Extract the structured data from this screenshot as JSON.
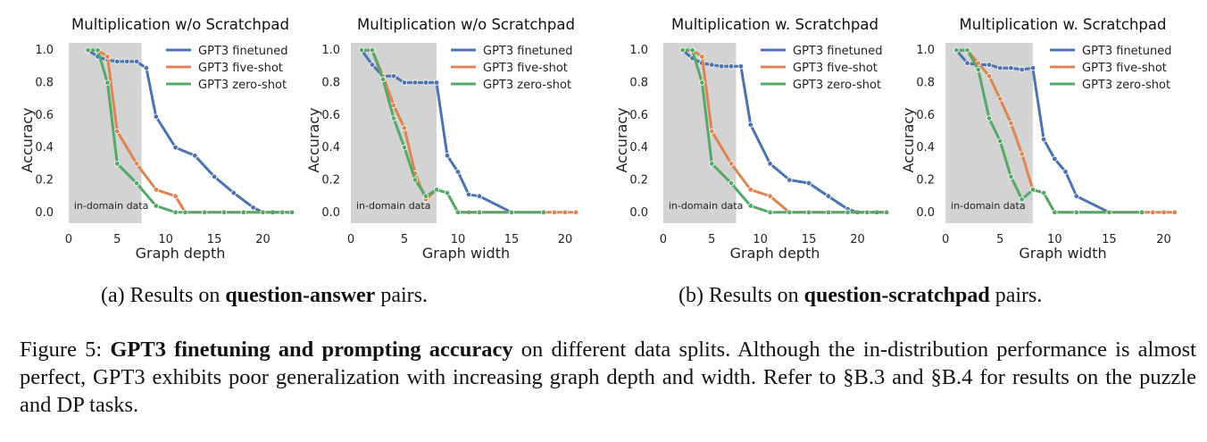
{
  "chart_data": [
    {
      "type": "line",
      "title": "Multiplication w/o Scratchpad",
      "xlabel": "Graph depth",
      "ylabel": "Accuracy",
      "xlim": [
        -1,
        24
      ],
      "ylim": [
        -0.1,
        1.1
      ],
      "xticks": [
        0,
        5,
        10,
        15,
        20
      ],
      "yticks": [
        0.0,
        0.2,
        0.4,
        0.6,
        0.8,
        1.0
      ],
      "shaded_region": {
        "x": [
          0,
          7.5
        ],
        "label": "in-domain data"
      },
      "legend_position": "top-right",
      "series": [
        {
          "name": "GPT3 finetuned",
          "color": "#4c72b0",
          "x": [
            2,
            3,
            4,
            5,
            6,
            7,
            8,
            9,
            11,
            13,
            15,
            17,
            19,
            20,
            21,
            22,
            23
          ],
          "y": [
            1.0,
            0.96,
            0.94,
            0.93,
            0.93,
            0.93,
            0.89,
            0.59,
            0.4,
            0.35,
            0.22,
            0.12,
            0.03,
            0.0,
            0.0,
            0.0,
            0.0
          ]
        },
        {
          "name": "GPT3 five-shot",
          "color": "#dd8452",
          "x": [
            2,
            3,
            4,
            5,
            7,
            9,
            11,
            12,
            14,
            16,
            18,
            20,
            22,
            23
          ],
          "y": [
            1.0,
            1.0,
            0.96,
            0.5,
            0.3,
            0.14,
            0.1,
            0.0,
            0.0,
            0.0,
            0.0,
            0.0,
            0.0,
            0.0
          ]
        },
        {
          "name": "GPT3 zero-shot",
          "color": "#55a868",
          "x": [
            2,
            3,
            4,
            5,
            7,
            9,
            11,
            12,
            14,
            16,
            18,
            20,
            22,
            23
          ],
          "y": [
            1.0,
            1.0,
            0.8,
            0.3,
            0.18,
            0.04,
            0.0,
            0.0,
            0.0,
            0.0,
            0.0,
            0.0,
            0.0,
            0.0
          ]
        }
      ]
    },
    {
      "type": "line",
      "title": "Multiplication w/o Scratchpad",
      "xlabel": "Graph width",
      "ylabel": "Accuracy",
      "xlim": [
        -0.5,
        22
      ],
      "ylim": [
        -0.1,
        1.1
      ],
      "xticks": [
        0,
        5,
        10,
        15,
        20
      ],
      "yticks": [
        0.0,
        0.2,
        0.4,
        0.6,
        0.8,
        1.0
      ],
      "shaded_region": {
        "x": [
          0,
          8
        ],
        "label": "in-domain data"
      },
      "legend_position": "top-right",
      "series": [
        {
          "name": "GPT3 finetuned",
          "color": "#4c72b0",
          "x": [
            1,
            2,
            3,
            4,
            5,
            6,
            7,
            8,
            9,
            10,
            11,
            12,
            15
          ],
          "y": [
            1.0,
            0.91,
            0.84,
            0.84,
            0.8,
            0.8,
            0.8,
            0.8,
            0.35,
            0.25,
            0.11,
            0.1,
            0.0
          ]
        },
        {
          "name": "GPT3 five-shot",
          "color": "#dd8452",
          "x": [
            1,
            2,
            3,
            4,
            5,
            6,
            7,
            8,
            9,
            10,
            11,
            12,
            15,
            18,
            19,
            20,
            21
          ],
          "y": [
            1.0,
            1.0,
            0.84,
            0.66,
            0.52,
            0.24,
            0.08,
            0.14,
            0.12,
            0.0,
            0.0,
            0.0,
            0.0,
            0.0,
            0.0,
            0.0,
            0.0
          ]
        },
        {
          "name": "GPT3 zero-shot",
          "color": "#55a868",
          "x": [
            1,
            2,
            3,
            4,
            5,
            6,
            7,
            8,
            9,
            10,
            12,
            15,
            18
          ],
          "y": [
            1.0,
            1.0,
            0.82,
            0.58,
            0.4,
            0.2,
            0.1,
            0.14,
            0.12,
            0.0,
            0.0,
            0.0,
            0.0
          ]
        }
      ]
    },
    {
      "type": "line",
      "title": "Multiplication w. Scratchpad",
      "xlabel": "Graph depth",
      "ylabel": "Accuracy",
      "xlim": [
        -1,
        24
      ],
      "ylim": [
        -0.1,
        1.1
      ],
      "xticks": [
        0,
        5,
        10,
        15,
        20
      ],
      "yticks": [
        0.0,
        0.2,
        0.4,
        0.6,
        0.8,
        1.0
      ],
      "shaded_region": {
        "x": [
          0,
          7.5
        ],
        "label": "in-domain data"
      },
      "legend_position": "top-right",
      "series": [
        {
          "name": "GPT3 finetuned",
          "color": "#4c72b0",
          "x": [
            2,
            3,
            4,
            5,
            6,
            7,
            8,
            9,
            11,
            13,
            15,
            17,
            19,
            20,
            21,
            22,
            23
          ],
          "y": [
            1.0,
            0.95,
            0.92,
            0.91,
            0.9,
            0.9,
            0.9,
            0.54,
            0.3,
            0.2,
            0.18,
            0.1,
            0.02,
            0.0,
            0.0,
            0.0,
            0.0
          ]
        },
        {
          "name": "GPT3 five-shot",
          "color": "#dd8452",
          "x": [
            2,
            3,
            4,
            5,
            7,
            9,
            11,
            13,
            15,
            17,
            19,
            21,
            23
          ],
          "y": [
            1.0,
            1.0,
            0.96,
            0.5,
            0.3,
            0.14,
            0.1,
            0.0,
            0.0,
            0.0,
            0.0,
            0.0,
            0.0
          ]
        },
        {
          "name": "GPT3 zero-shot",
          "color": "#55a868",
          "x": [
            2,
            3,
            4,
            5,
            7,
            9,
            11,
            13,
            15,
            17,
            19,
            21,
            23
          ],
          "y": [
            1.0,
            1.0,
            0.8,
            0.3,
            0.18,
            0.04,
            0.0,
            0.0,
            0.0,
            0.0,
            0.0,
            0.0,
            0.0
          ]
        }
      ]
    },
    {
      "type": "line",
      "title": "Multiplication w. Scratchpad",
      "xlabel": "Graph width",
      "ylabel": "Accuracy",
      "xlim": [
        -0.5,
        22
      ],
      "ylim": [
        -0.1,
        1.1
      ],
      "xticks": [
        0,
        5,
        10,
        15,
        20
      ],
      "yticks": [
        0.0,
        0.2,
        0.4,
        0.6,
        0.8,
        1.0
      ],
      "shaded_region": {
        "x": [
          0,
          8
        ],
        "label": "in-domain data"
      },
      "legend_position": "top-right",
      "series": [
        {
          "name": "GPT3 finetuned",
          "color": "#4c72b0",
          "x": [
            1,
            2,
            3,
            4,
            5,
            6,
            7,
            8,
            9,
            10,
            11,
            12,
            15
          ],
          "y": [
            1.0,
            0.92,
            0.91,
            0.91,
            0.89,
            0.89,
            0.88,
            0.89,
            0.45,
            0.33,
            0.25,
            0.1,
            0.0
          ]
        },
        {
          "name": "GPT3 five-shot",
          "color": "#dd8452",
          "x": [
            1,
            2,
            3,
            4,
            5,
            6,
            7,
            8,
            9,
            10,
            12,
            15,
            18,
            19,
            20,
            21
          ],
          "y": [
            1.0,
            1.0,
            0.92,
            0.84,
            0.7,
            0.55,
            0.36,
            0.14,
            0.12,
            0.0,
            0.0,
            0.0,
            0.0,
            0.0,
            0.0,
            0.0
          ]
        },
        {
          "name": "GPT3 zero-shot",
          "color": "#55a868",
          "x": [
            1,
            2,
            3,
            4,
            5,
            6,
            7,
            8,
            9,
            10,
            12,
            15,
            18
          ],
          "y": [
            1.0,
            1.0,
            0.88,
            0.58,
            0.44,
            0.22,
            0.08,
            0.14,
            0.12,
            0.0,
            0.0,
            0.0,
            0.0
          ]
        }
      ]
    }
  ],
  "subcaptions": {
    "a": {
      "prefix": "(a) Results on ",
      "bold": "question-answer",
      "suffix": " pairs."
    },
    "b": {
      "prefix": "(b) Results on ",
      "bold": "question-scratchpad",
      "suffix": " pairs."
    }
  },
  "caption": {
    "label": "Figure 5:",
    "bold": "GPT3 finetuning and prompting accuracy",
    "text": " on different data splits. Although the in-distribution performance is almost perfect, GPT3 exhibits poor generalization with increasing graph depth and width. Refer to §B.3 and §B.4 for results on the puzzle and DP tasks."
  }
}
